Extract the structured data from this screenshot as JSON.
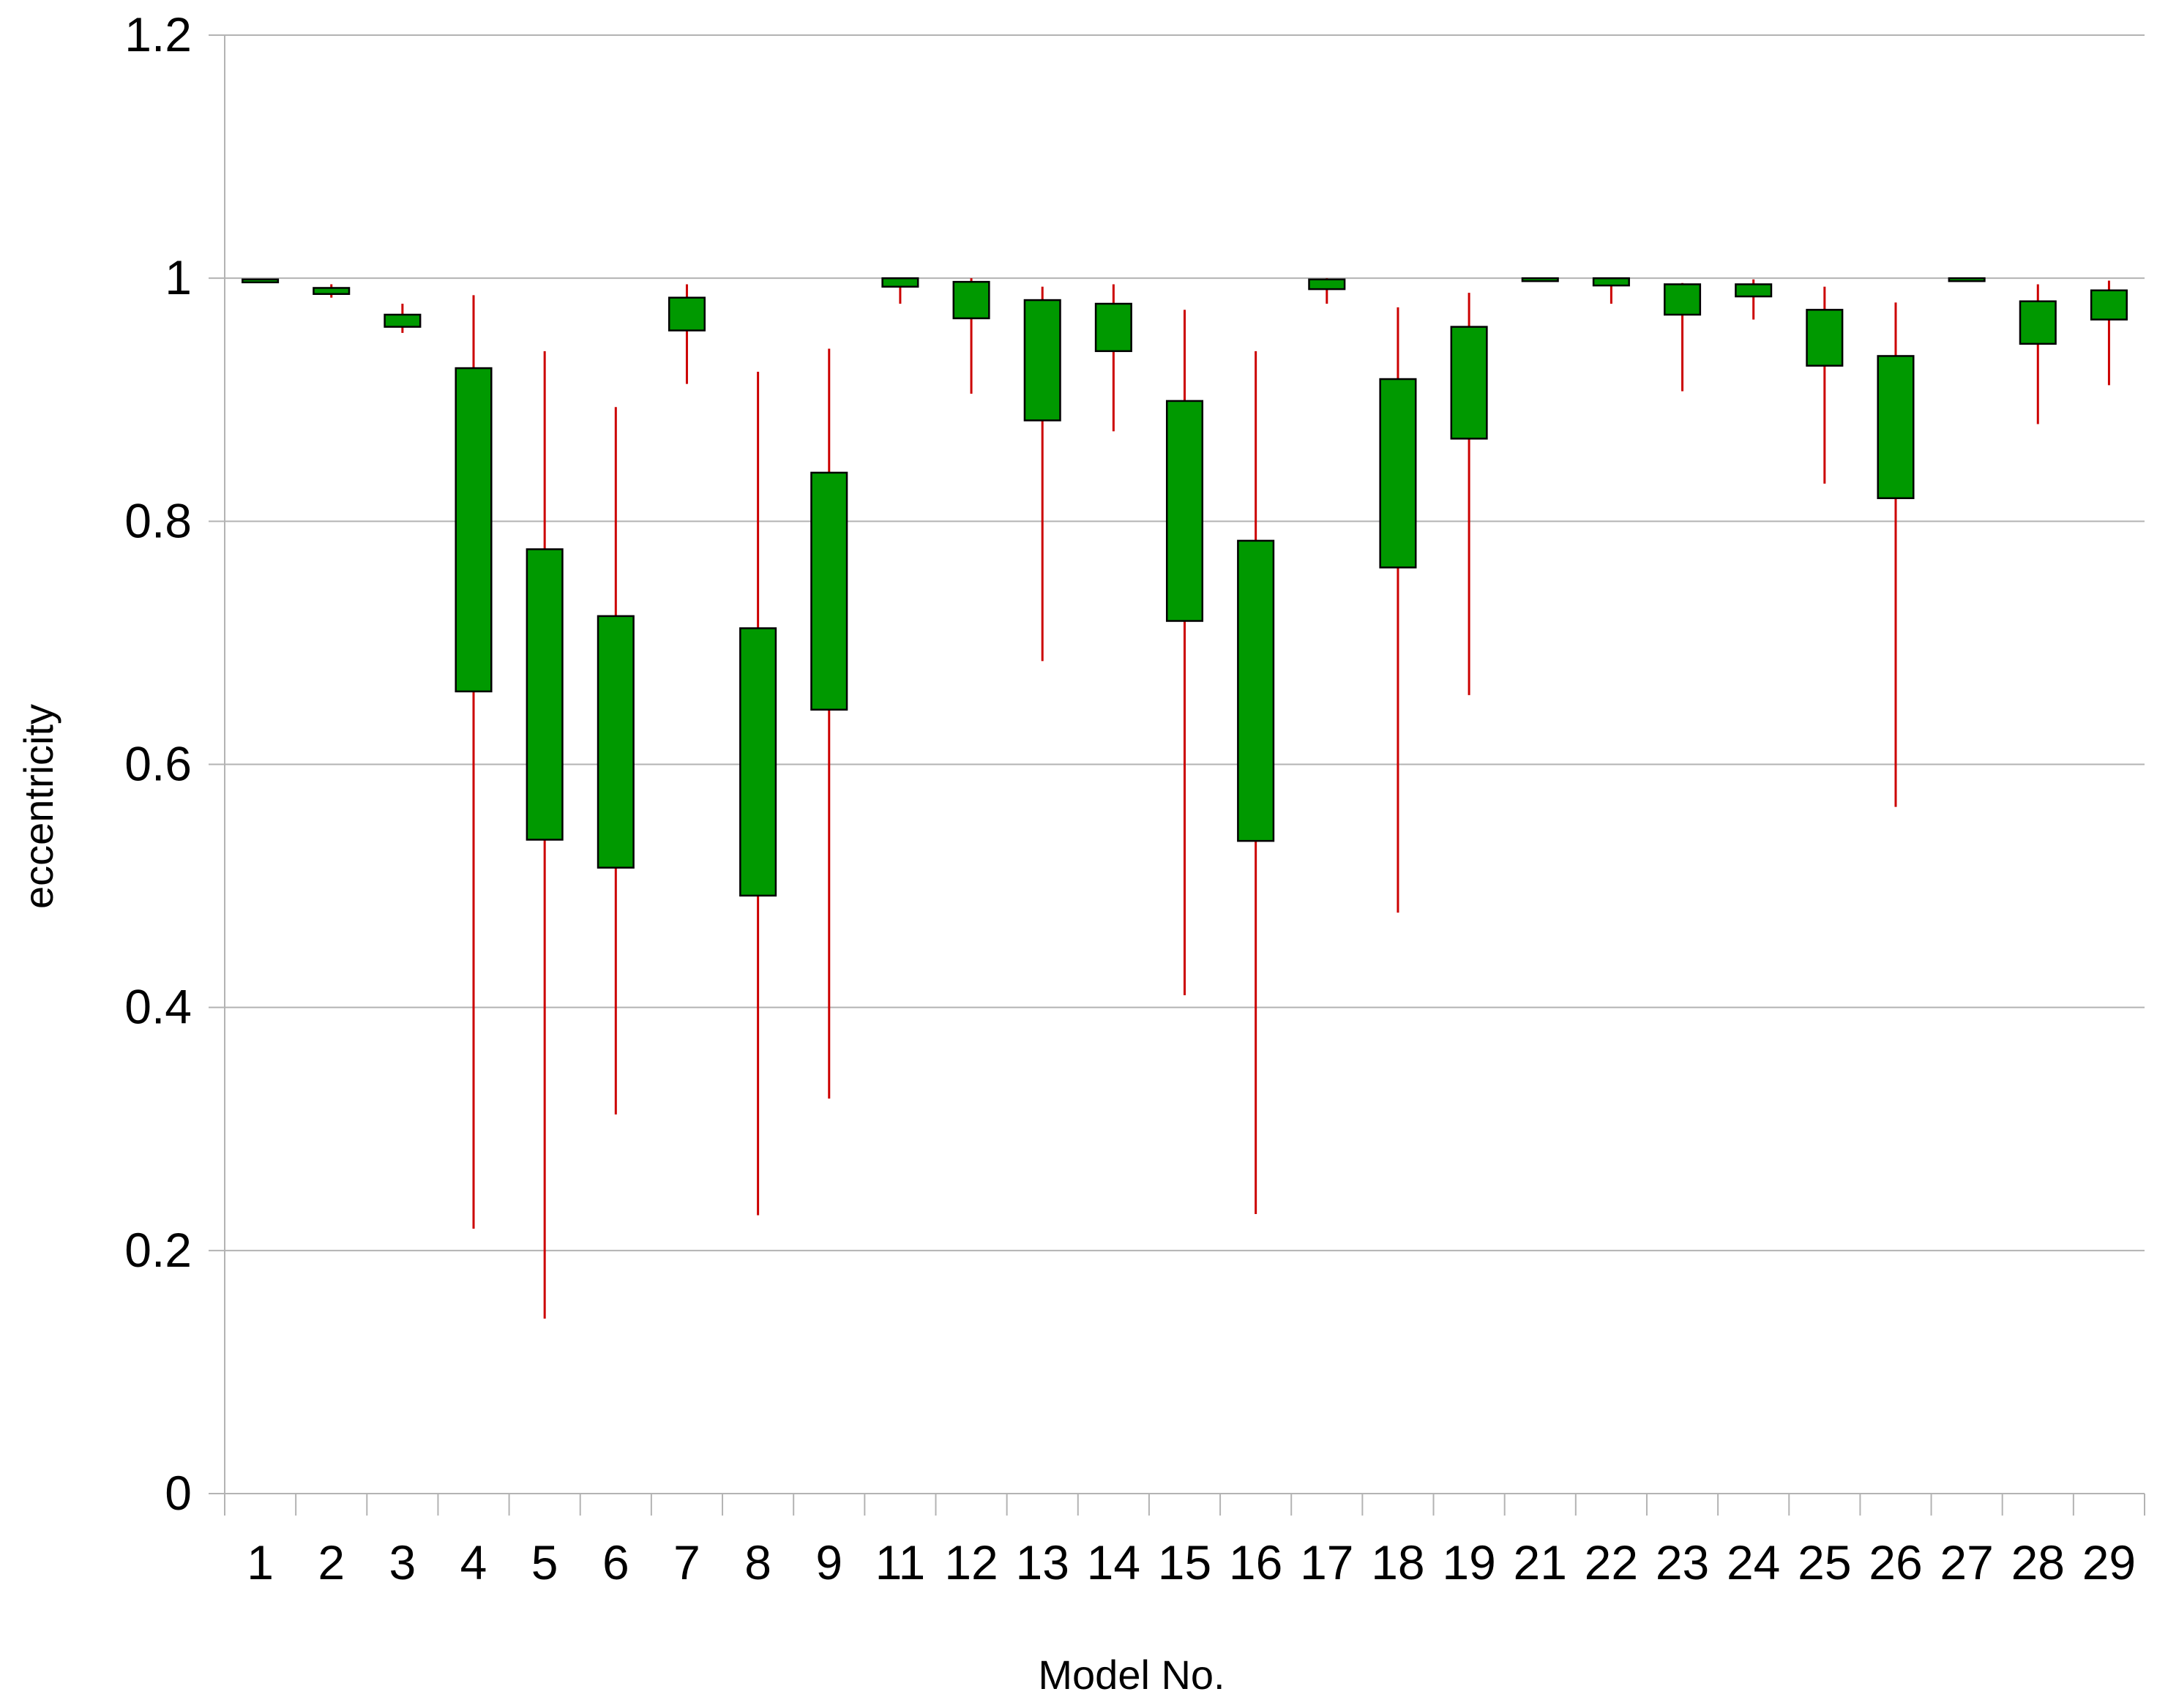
{
  "chart_data": {
    "type": "candlestick",
    "title": "",
    "xlabel": "Model No.",
    "ylabel": "eccentricity",
    "ylim": [
      0,
      1.2
    ],
    "yticks": [
      "0",
      "0.2",
      "0.4",
      "0.6",
      "0.8",
      "1",
      "1.2"
    ],
    "grid": true,
    "categories": [
      "1",
      "2",
      "3",
      "4",
      "5",
      "6",
      "7",
      "8",
      "9",
      "11",
      "12",
      "13",
      "14",
      "15",
      "16",
      "17",
      "18",
      "19",
      "21",
      "22",
      "23",
      "24",
      "25",
      "26",
      "27",
      "28",
      "29"
    ],
    "series": [
      {
        "box_low": [
          0.997,
          0.987,
          0.96,
          0.66,
          0.538,
          0.515,
          0.957,
          0.492,
          0.645,
          0.993,
          0.967,
          0.883,
          0.94,
          0.718,
          0.537,
          0.991,
          0.762,
          0.868,
          0.999,
          0.994,
          0.97,
          0.985,
          0.928,
          0.819,
          0.998,
          0.946,
          0.966
        ],
        "box_high": [
          0.999,
          0.992,
          0.97,
          0.926,
          0.777,
          0.722,
          0.984,
          0.712,
          0.84,
          1.0,
          0.997,
          0.982,
          0.979,
          0.899,
          0.784,
          0.999,
          0.917,
          0.96,
          1.0,
          1.0,
          0.995,
          0.995,
          0.974,
          0.936,
          1.0,
          0.981,
          0.99
        ],
        "whisker_low": [
          0.997,
          0.984,
          0.955,
          0.218,
          0.144,
          0.312,
          0.913,
          0.229,
          0.325,
          0.979,
          0.905,
          0.685,
          0.874,
          0.41,
          0.23,
          0.979,
          0.478,
          0.657,
          0.999,
          0.979,
          0.907,
          0.966,
          0.831,
          0.565,
          0.998,
          0.88,
          0.912
        ],
        "whisker_high": [
          0.999,
          0.995,
          0.979,
          0.986,
          0.94,
          0.894,
          0.995,
          0.923,
          0.942,
          1.0,
          1.0,
          0.993,
          0.995,
          0.974,
          0.94,
          1.0,
          0.976,
          0.988,
          1.0,
          1.0,
          0.996,
          0.999,
          0.993,
          0.98,
          1.0,
          0.995,
          0.998
        ]
      }
    ],
    "colors": {
      "box": "#009900",
      "box_stroke": "#000000",
      "whisker": "#cc0000",
      "grid": "#b3b3b3",
      "axis": "#b3b3b3"
    }
  }
}
